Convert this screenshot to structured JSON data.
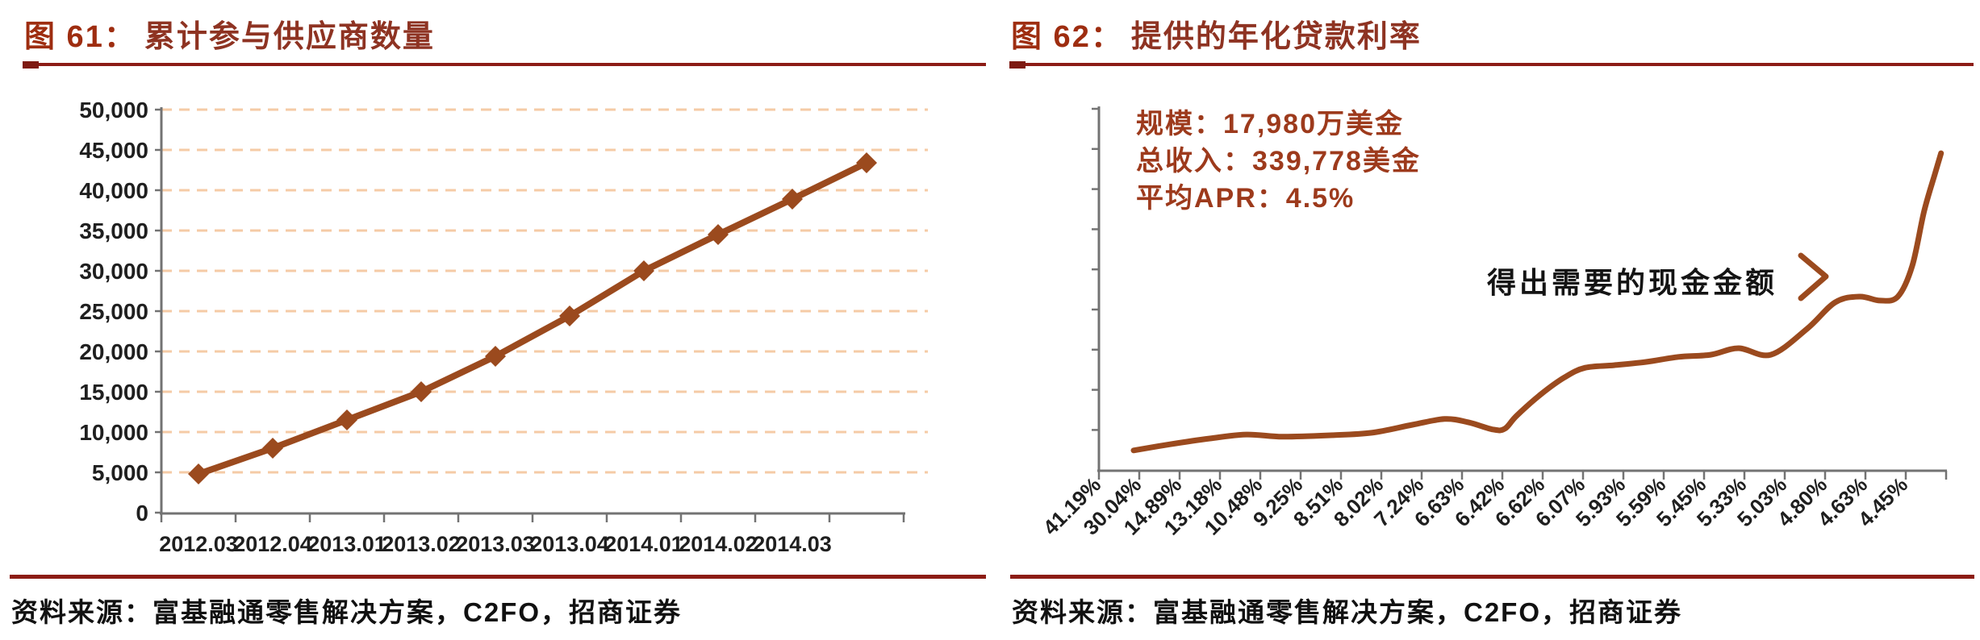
{
  "figures": {
    "left": {
      "label": "图 61：",
      "title": "累计参与供应商数量",
      "source": "资料来源：富基融通零售解决方案，C2FO，招商证券"
    },
    "right": {
      "label": "图 62：",
      "title": "提供的年化贷款利率",
      "source": "资料来源：富基融通零售解决方案，C2FO，招商证券",
      "stats": {
        "line1": "规模：17,980万美金",
        "line2": "总收入：339,778美金",
        "line3": "平均APR：4.5%"
      },
      "note": "得出需要的现金金额"
    }
  },
  "colors": {
    "title_label": "#9e2d10",
    "title_text": "#8e3322",
    "rule": "#8c1c15",
    "series": "#9b4a1e",
    "grid": "#f5cba6",
    "axis": "#737373",
    "tick_text": "#1f1f1f",
    "stats_text": "#9d3a1c",
    "note_text": "#141414"
  },
  "chart_data": [
    {
      "id": "cumulative-suppliers",
      "type": "line",
      "title": "累计参与供应商数量",
      "categories": [
        "2012.03",
        "2012.04",
        "2013.01",
        "2013.02",
        "2013.03",
        "2013.04",
        "2014.01",
        "2014.02",
        "2014.03",
        ""
      ],
      "values": [
        4800,
        8000,
        11500,
        15000,
        19400,
        24400,
        30000,
        34500,
        38900,
        43400
      ],
      "xlabel": "",
      "ylabel": "",
      "ylim": [
        0,
        50000
      ],
      "ytick_step": 5000,
      "ytick_labels": [
        "0",
        "5,000",
        "10,000",
        "15,000",
        "20,000",
        "25,000",
        "30,000",
        "35,000",
        "40,000",
        "45,000",
        "50,000"
      ],
      "marker": "diamond",
      "grid": "horizontal-dashed",
      "legend": "none"
    },
    {
      "id": "annualized-loan-apr",
      "type": "line",
      "title": "提供的年化贷款利率",
      "categories": [
        "41.19%",
        "30.04%",
        "14.89%",
        "13.18%",
        "10.48%",
        "9.25%",
        "8.51%",
        "8.02%",
        "7.24%",
        "6.63%",
        "6.42%",
        "6.62%",
        "6.07%",
        "5.93%",
        "5.59%",
        "5.45%",
        "5.33%",
        "5.03%",
        "4.80%",
        "4.63%",
        "4.45%"
      ],
      "xlabel": "",
      "ylabel": "",
      "y_axis_labels": "none",
      "grid": "none",
      "legend": "none",
      "annotations": [
        "规模：17,980万美金",
        "总收入：339,778美金",
        "平均APR：4.5%",
        "得出需要的现金金额"
      ],
      "curve_points": [
        [
          0.041,
          0.054
        ],
        [
          0.084,
          0.071
        ],
        [
          0.131,
          0.087
        ],
        [
          0.174,
          0.098
        ],
        [
          0.217,
          0.092
        ],
        [
          0.274,
          0.096
        ],
        [
          0.322,
          0.103
        ],
        [
          0.37,
          0.125
        ],
        [
          0.408,
          0.141
        ],
        [
          0.436,
          0.132
        ],
        [
          0.465,
          0.112
        ],
        [
          0.479,
          0.114
        ],
        [
          0.493,
          0.15
        ],
        [
          0.522,
          0.21
        ],
        [
          0.55,
          0.257
        ],
        [
          0.574,
          0.283
        ],
        [
          0.608,
          0.29
        ],
        [
          0.646,
          0.299
        ],
        [
          0.684,
          0.313
        ],
        [
          0.722,
          0.319
        ],
        [
          0.755,
          0.337
        ],
        [
          0.793,
          0.319
        ],
        [
          0.836,
          0.391
        ],
        [
          0.869,
          0.464
        ],
        [
          0.898,
          0.48
        ],
        [
          0.922,
          0.469
        ],
        [
          0.943,
          0.48
        ],
        [
          0.96,
          0.565
        ],
        [
          0.974,
          0.716
        ],
        [
          0.987,
          0.821
        ],
        [
          0.994,
          0.877
        ]
      ]
    }
  ]
}
